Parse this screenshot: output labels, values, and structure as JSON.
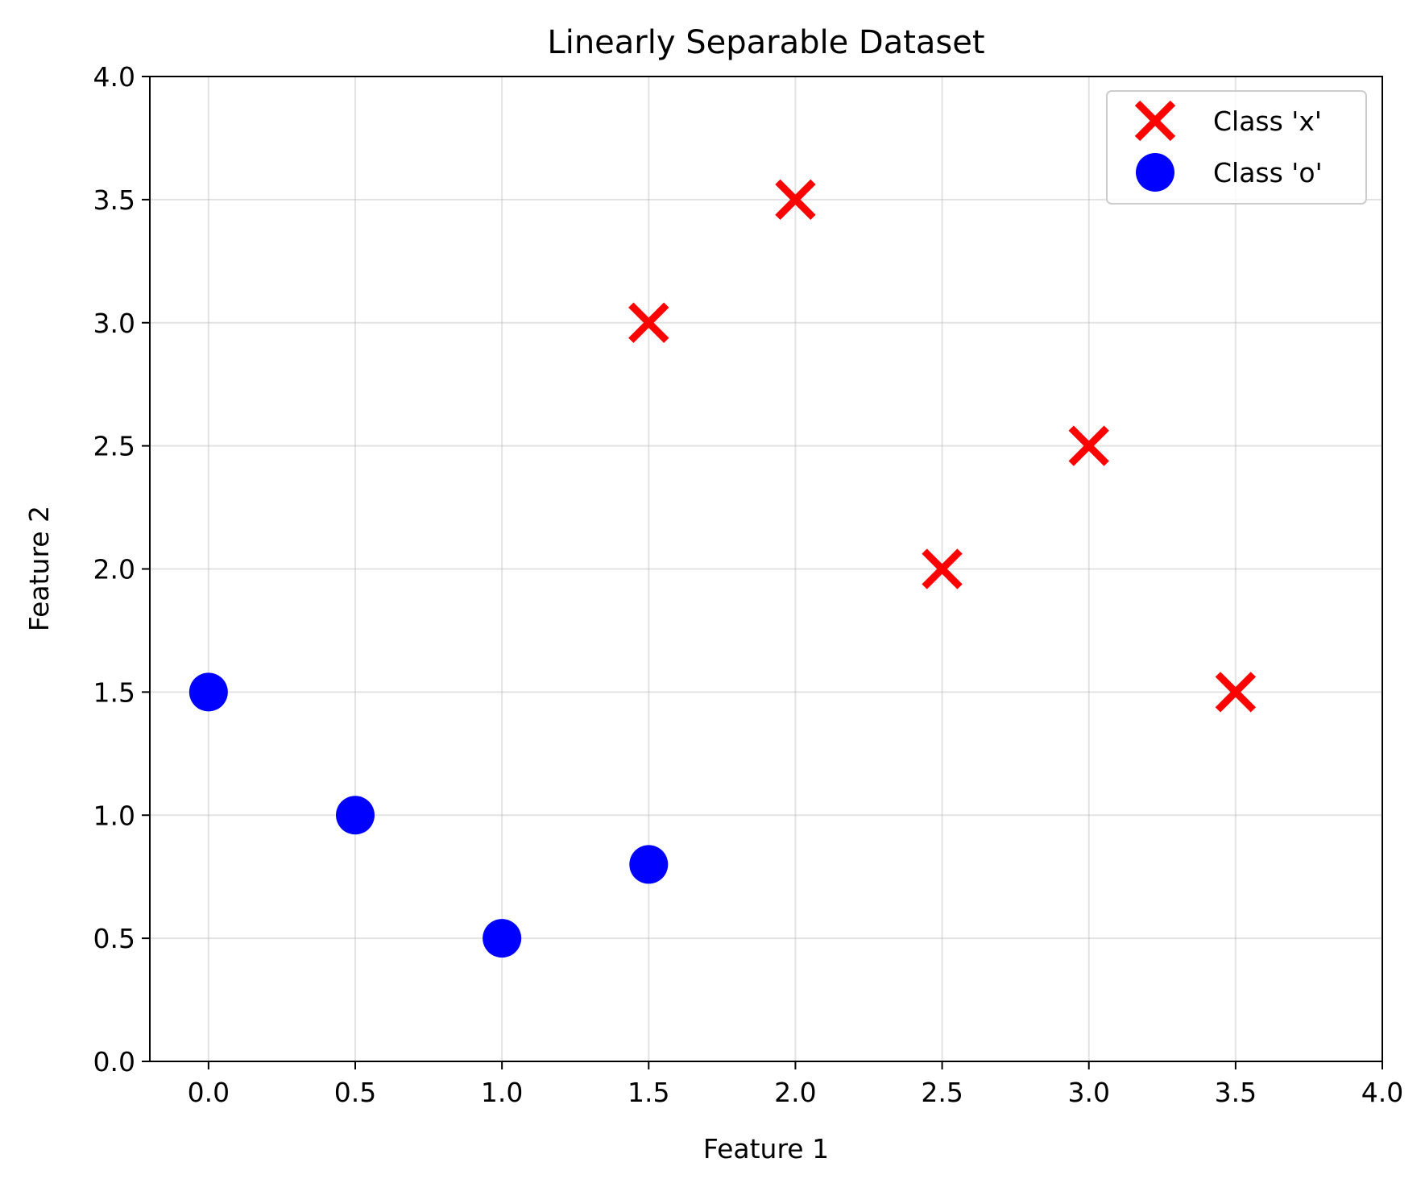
{
  "chart_data": {
    "type": "scatter",
    "title": "Linearly Separable Dataset",
    "xlabel": "Feature 1",
    "ylabel": "Feature 2",
    "xlim": [
      -0.2,
      4.0
    ],
    "ylim": [
      0.0,
      4.0
    ],
    "xticks": [
      0.0,
      0.5,
      1.0,
      1.5,
      2.0,
      2.5,
      3.0,
      3.5,
      4.0
    ],
    "yticks": [
      0.0,
      0.5,
      1.0,
      1.5,
      2.0,
      2.5,
      3.0,
      3.5,
      4.0
    ],
    "grid": true,
    "legend_position": "top-right",
    "series": [
      {
        "name": "Class 'x'",
        "marker": "x",
        "color": "#ff0000",
        "points": [
          [
            1.5,
            3.0
          ],
          [
            2.0,
            3.5
          ],
          [
            2.5,
            2.0
          ],
          [
            3.0,
            2.5
          ],
          [
            3.5,
            1.5
          ]
        ]
      },
      {
        "name": "Class 'o'",
        "marker": "o",
        "color": "#0000ff",
        "points": [
          [
            0.0,
            1.5
          ],
          [
            0.5,
            1.0
          ],
          [
            1.0,
            0.5
          ],
          [
            1.5,
            0.8
          ]
        ]
      }
    ]
  }
}
